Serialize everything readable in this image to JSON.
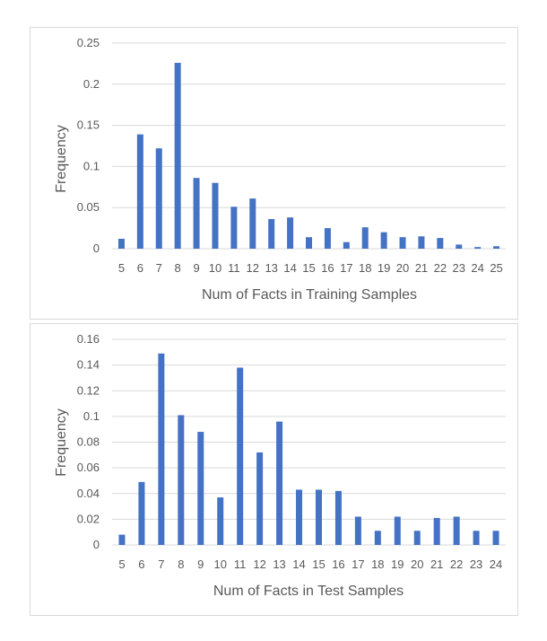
{
  "colors": {
    "bar": "#4472C4",
    "grid": "#d9d9d9",
    "text": "#595959"
  },
  "chart_data": [
    {
      "type": "bar",
      "title": "",
      "xlabel": "Num of Facts in Training Samples",
      "ylabel": "Frequency",
      "ylim": [
        0,
        0.25
      ],
      "yticks": [
        "0",
        "0.05",
        "0.1",
        "0.15",
        "0.2",
        "0.25"
      ],
      "grid": true,
      "categories": [
        "5",
        "6",
        "7",
        "8",
        "9",
        "10",
        "11",
        "12",
        "13",
        "14",
        "15",
        "16",
        "17",
        "18",
        "19",
        "20",
        "21",
        "22",
        "23",
        "24",
        "25"
      ],
      "series": [
        {
          "values": [
            0.012,
            0.139,
            0.122,
            0.226,
            0.086,
            0.08,
            0.051,
            0.061,
            0.036,
            0.038,
            0.014,
            0.025,
            0.008,
            0.026,
            0.02,
            0.014,
            0.015,
            0.013,
            0.005,
            0.002,
            0.003
          ]
        }
      ]
    },
    {
      "type": "bar",
      "title": "",
      "xlabel": "Num of Facts in Test Samples",
      "ylabel": "Frequency",
      "ylim": [
        0,
        0.16
      ],
      "yticks": [
        "0",
        "0.02",
        "0.04",
        "0.06",
        "0.08",
        "0.1",
        "0.12",
        "0.14",
        "0.16"
      ],
      "grid": true,
      "categories": [
        "5",
        "6",
        "7",
        "8",
        "9",
        "10",
        "11",
        "12",
        "13",
        "14",
        "15",
        "16",
        "17",
        "18",
        "19",
        "20",
        "21",
        "22",
        "23",
        "24"
      ],
      "series": [
        {
          "values": [
            0.008,
            0.049,
            0.149,
            0.101,
            0.088,
            0.037,
            0.138,
            0.072,
            0.096,
            0.043,
            0.043,
            0.042,
            0.022,
            0.011,
            0.022,
            0.011,
            0.021,
            0.022,
            0.011,
            0.011
          ]
        }
      ]
    }
  ]
}
